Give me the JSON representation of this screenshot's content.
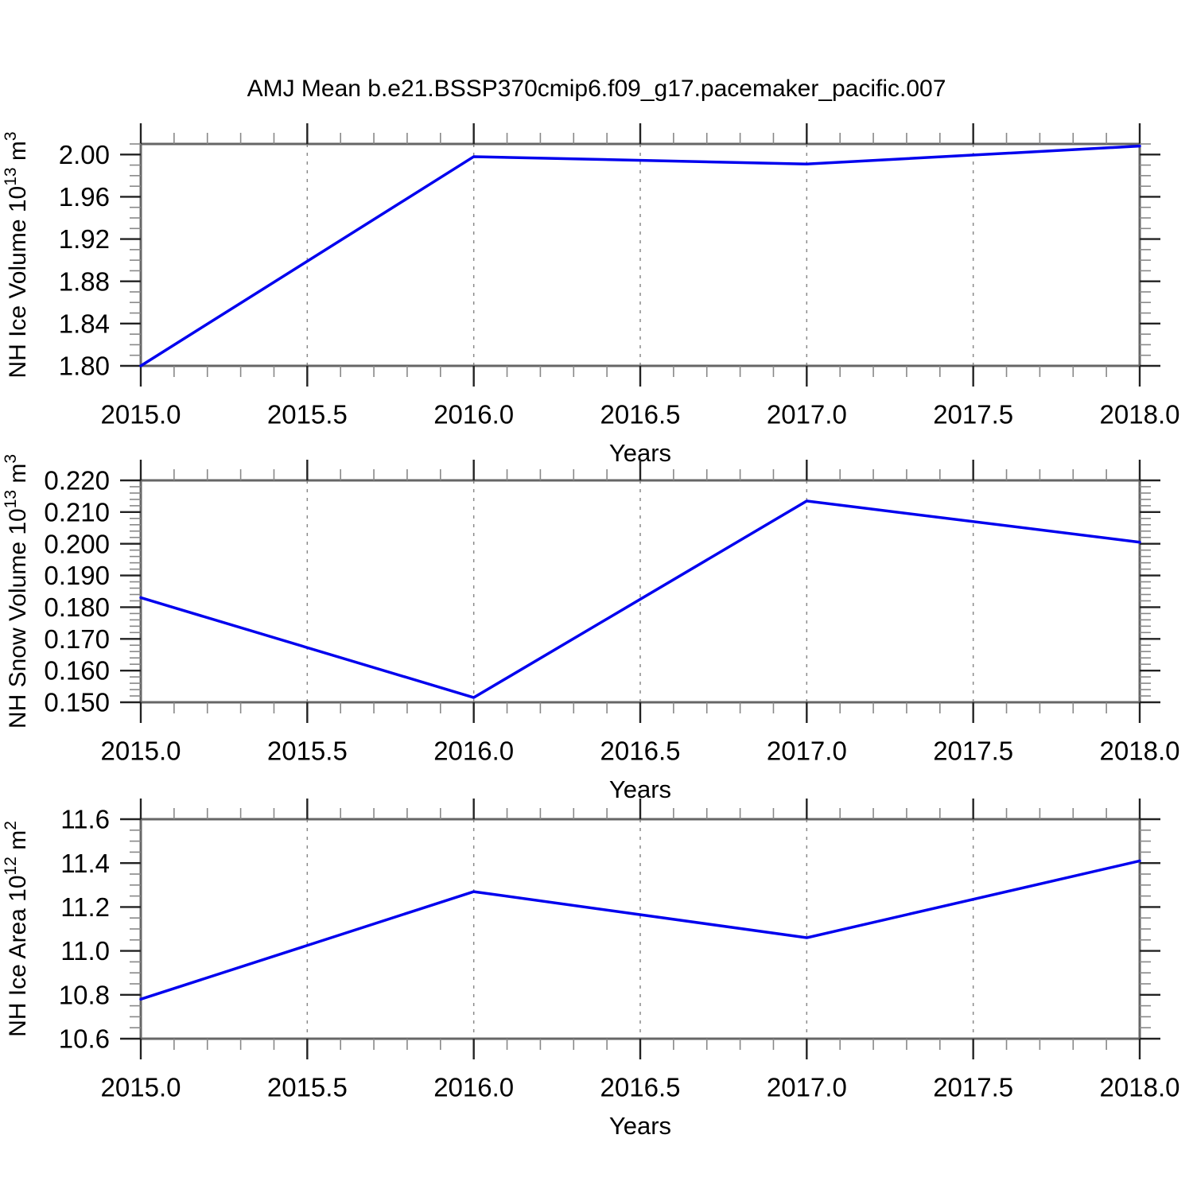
{
  "title": "AMJ Mean b.e21.BSSP370cmip6.f09_g17.pacemaker_pacific.007",
  "colors": {
    "line": "#0000ee",
    "frame": "#666666",
    "major_tick": "#222222",
    "minor_tick": "#888888",
    "gridline": "#8a8a8a",
    "text": "#000000",
    "background": "#ffffff"
  },
  "x_axis": {
    "label": "Years",
    "min": 2015.0,
    "max": 2018.0,
    "major_ticks": [
      2015.0,
      2015.5,
      2016.0,
      2016.5,
      2017.0,
      2017.5,
      2018.0
    ],
    "tick_labels": [
      "2015.0",
      "2015.5",
      "2016.0",
      "2016.5",
      "2017.0",
      "2017.5",
      "2018.0"
    ],
    "minor_step": 0.1,
    "gridlines": [
      2015.5,
      2016.0,
      2016.5,
      2017.0,
      2017.5
    ],
    "grid_style": "vertical-dashed"
  },
  "chart_data": [
    {
      "type": "line",
      "name": "nh-ice-volume",
      "ylabel_text": "NH Ice Volume 10^13 m^3",
      "ylabel_segments": [
        {
          "t": "NH Ice Volume 10"
        },
        {
          "t": "13",
          "sup": true
        },
        {
          "t": " m"
        },
        {
          "t": "3",
          "sup": true
        }
      ],
      "xlabel": "Years",
      "x": [
        2015,
        2016,
        2017,
        2018
      ],
      "values": [
        1.8,
        1.998,
        1.991,
        2.008
      ],
      "ylim": [
        1.8,
        2.01
      ],
      "ytick_values": [
        2.0,
        1.96,
        1.92,
        1.88,
        1.84,
        1.8
      ],
      "ytick_labels": [
        "2.00",
        "1.96",
        "1.92",
        "1.88",
        "1.84",
        "1.80"
      ],
      "yminor_step": 0.01,
      "legend": "none"
    },
    {
      "type": "line",
      "name": "nh-snow-volume",
      "ylabel_text": "NH Snow Volume 10^13 m^3",
      "ylabel_segments": [
        {
          "t": "NH Snow Volume 10"
        },
        {
          "t": "13",
          "sup": true
        },
        {
          "t": " m"
        },
        {
          "t": "3",
          "sup": true
        }
      ],
      "xlabel": "Years",
      "x": [
        2015,
        2016,
        2017,
        2018
      ],
      "values": [
        0.183,
        0.1515,
        0.2135,
        0.2005
      ],
      "ylim": [
        0.15,
        0.22
      ],
      "ytick_values": [
        0.22,
        0.21,
        0.2,
        0.19,
        0.18,
        0.17,
        0.16,
        0.15
      ],
      "ytick_labels": [
        "0.220",
        "0.210",
        "0.200",
        "0.190",
        "0.180",
        "0.170",
        "0.160",
        "0.150"
      ],
      "yminor_step": 0.002,
      "legend": "none"
    },
    {
      "type": "line",
      "name": "nh-ice-area",
      "ylabel_text": "NH Ice Area 10^12 m^2",
      "ylabel_segments": [
        {
          "t": "NH Ice Area 10"
        },
        {
          "t": "12",
          "sup": true
        },
        {
          "t": " m"
        },
        {
          "t": "2",
          "sup": true
        }
      ],
      "xlabel": "Years",
      "x": [
        2015,
        2016,
        2017,
        2018
      ],
      "values": [
        10.78,
        11.27,
        11.06,
        11.41
      ],
      "ylim": [
        10.6,
        11.6
      ],
      "ytick_values": [
        11.6,
        11.4,
        11.2,
        11.0,
        10.8,
        10.6
      ],
      "ytick_labels": [
        "11.6",
        "11.4",
        "11.2",
        "11.0",
        "10.8",
        "10.6"
      ],
      "yminor_step": 0.05,
      "legend": "none"
    }
  ]
}
